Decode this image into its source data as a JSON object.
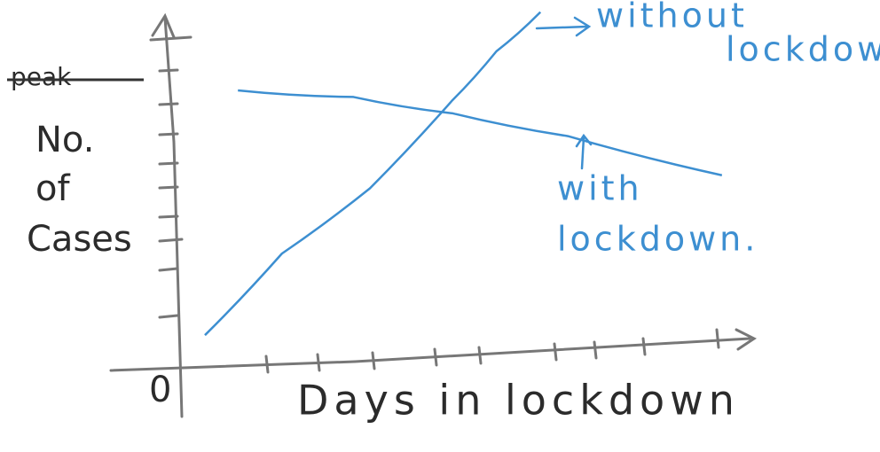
{
  "chart_data": {
    "type": "line",
    "ylabel": [
      "No.",
      "of",
      "Cases"
    ],
    "xlabel": "Days in lockdown",
    "origin_label": "0",
    "struck_label": "peak",
    "xlim": [
      0,
      10
    ],
    "ylim": [
      0,
      11
    ],
    "series": [
      {
        "name": [
          "without",
          "lockdown"
        ],
        "color": "#3d8fd1",
        "x": [
          0.5,
          1.9,
          3.5,
          5.0,
          5.8,
          6.6
        ],
        "values": [
          1.0,
          3.5,
          5.5,
          8.2,
          9.7,
          10.9
        ]
      },
      {
        "name": [
          "with",
          "lockdown."
        ],
        "color": "#3d8fd1",
        "x": [
          1.1,
          3.2,
          5.0,
          7.1,
          9.9
        ],
        "values": [
          8.5,
          8.3,
          7.8,
          7.1,
          5.9
        ]
      }
    ]
  }
}
